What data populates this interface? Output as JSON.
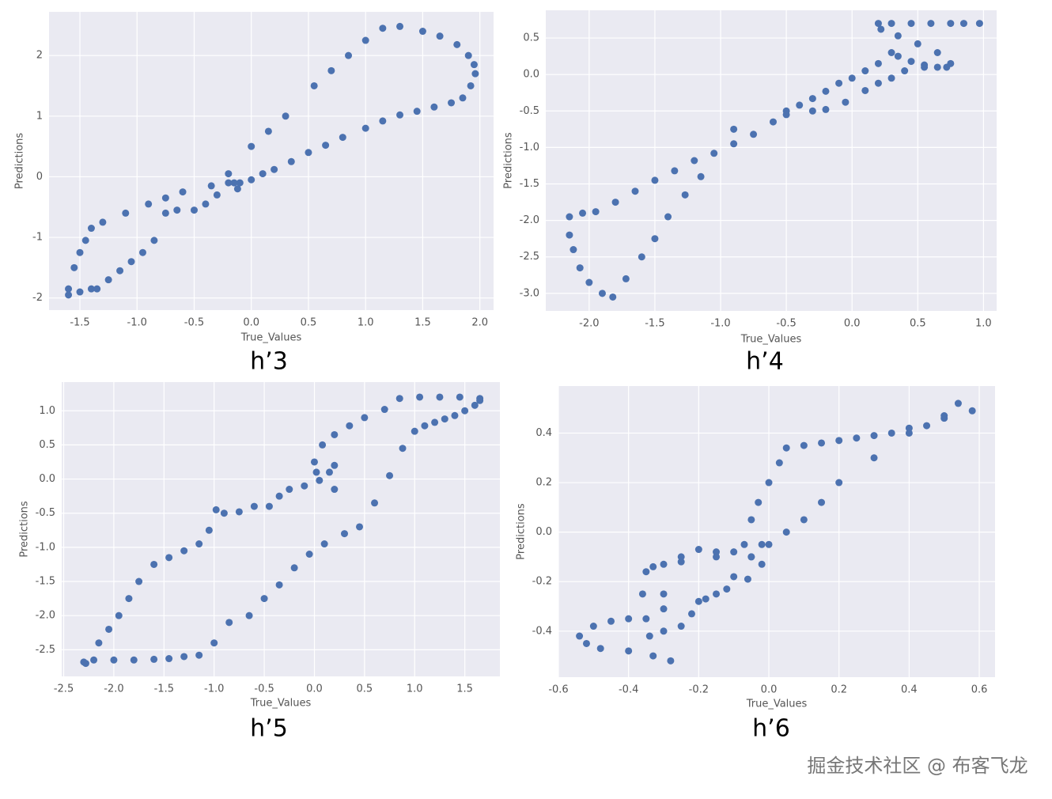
{
  "chart_data": [
    {
      "type": "scatter",
      "title": "h’3",
      "x_label": "True_Values",
      "y_label": "Predictions",
      "color": "#4c72b0",
      "grid": true,
      "xlim": [
        -1.77,
        2.12
      ],
      "ylim": [
        -2.2,
        2.72
      ],
      "xticks": [
        -1.5,
        {
          "value": -1.0,
          "label": "-1.0"
        },
        -0.5,
        {
          "value": 0,
          "label": "0.0"
        },
        0.5,
        {
          "value": 1.0,
          "label": "1.0"
        },
        1.5,
        {
          "value": 2.0,
          "label": "2.0"
        }
      ],
      "yticks": [
        -2,
        -1,
        0,
        1,
        2
      ],
      "x": [
        -1.6,
        -1.5,
        -1.4,
        -1.35,
        -1.25,
        -1.15,
        -1.05,
        -0.95,
        -0.85,
        -0.75,
        -0.65,
        -0.5,
        -0.4,
        -0.3,
        -0.2,
        -0.15,
        -0.12,
        -0.1,
        0.0,
        0.1,
        0.2,
        0.35,
        0.5,
        0.65,
        0.8,
        1.0,
        1.15,
        1.3,
        1.45,
        1.6,
        1.75,
        1.85,
        1.92,
        1.96,
        1.95,
        1.9,
        1.8,
        1.65,
        1.5,
        1.3,
        1.15,
        1.0,
        0.85,
        0.7,
        0.55,
        0.3,
        0.15,
        0.0,
        -0.2,
        -0.35,
        -0.6,
        -0.75,
        -0.9,
        -1.1,
        -1.3,
        -1.4,
        -1.45,
        -1.5,
        -1.55,
        -1.6
      ],
      "values": [
        -1.95,
        -1.9,
        -1.85,
        -1.85,
        -1.7,
        -1.55,
        -1.4,
        -1.25,
        -1.05,
        -0.6,
        -0.55,
        -0.55,
        -0.45,
        -0.3,
        -0.1,
        -0.1,
        -0.2,
        -0.1,
        -0.05,
        0.05,
        0.12,
        0.25,
        0.4,
        0.52,
        0.65,
        0.8,
        0.92,
        1.02,
        1.08,
        1.15,
        1.22,
        1.3,
        1.5,
        1.7,
        1.85,
        2.0,
        2.18,
        2.32,
        2.4,
        2.48,
        2.45,
        2.25,
        2.0,
        1.75,
        1.5,
        1.0,
        0.75,
        0.5,
        0.05,
        -0.15,
        -0.25,
        -0.35,
        -0.45,
        -0.6,
        -0.75,
        -0.85,
        -1.05,
        -1.25,
        -1.5,
        -1.85
      ]
    },
    {
      "type": "scatter",
      "title": "h’4",
      "x_label": "True_Values",
      "y_label": "Predictions",
      "color": "#4c72b0",
      "grid": true,
      "xlim": [
        -2.33,
        1.1
      ],
      "ylim": [
        -3.24,
        0.88
      ],
      "xticks": [
        {
          "value": -2.0,
          "label": "-2.0"
        },
        -1.5,
        {
          "value": -1.0,
          "label": "-1.0"
        },
        -0.5,
        {
          "value": 0,
          "label": "0.0"
        },
        0.5,
        {
          "value": 1.0,
          "label": "1.0"
        }
      ],
      "yticks": [
        {
          "value": -3.0,
          "label": "-3.0"
        },
        -2.5,
        {
          "value": -2.0,
          "label": "-2.0"
        },
        -1.5,
        {
          "value": -1.0,
          "label": "-1.0"
        },
        -0.5,
        {
          "value": 0,
          "label": "0.0"
        },
        0.5
      ],
      "x": [
        -2.15,
        -2.05,
        -1.95,
        -1.8,
        -1.65,
        -1.5,
        -1.35,
        -1.2,
        -1.05,
        -0.9,
        -0.75,
        -0.6,
        -0.5,
        -0.4,
        -0.3,
        -0.2,
        -0.1,
        0.0,
        0.1,
        0.2,
        0.3,
        0.35,
        0.45,
        0.55,
        0.65,
        0.72,
        0.75,
        0.65,
        0.5,
        0.35,
        0.22,
        0.2,
        0.3,
        0.45,
        0.6,
        0.75,
        0.85,
        0.97,
        0.55,
        0.4,
        0.3,
        0.2,
        0.1,
        -0.05,
        -0.2,
        -0.3,
        -0.5,
        -0.9,
        -1.15,
        -1.27,
        -1.4,
        -1.5,
        -1.6,
        -1.72,
        -1.82,
        -1.9,
        -2.0,
        -2.07,
        -2.12,
        -2.15
      ],
      "values": [
        -1.95,
        -1.9,
        -1.88,
        -1.75,
        -1.6,
        -1.45,
        -1.32,
        -1.18,
        -1.08,
        -0.95,
        -0.82,
        -0.65,
        -0.5,
        -0.42,
        -0.33,
        -0.23,
        -0.12,
        -0.05,
        0.05,
        0.15,
        0.3,
        0.25,
        0.18,
        0.13,
        0.1,
        0.1,
        0.15,
        0.3,
        0.42,
        0.53,
        0.62,
        0.7,
        0.7,
        0.7,
        0.7,
        0.7,
        0.7,
        0.7,
        0.1,
        0.05,
        -0.05,
        -0.12,
        -0.22,
        -0.38,
        -0.48,
        -0.5,
        -0.55,
        -0.75,
        -1.4,
        -1.65,
        -1.95,
        -2.25,
        -2.5,
        -2.8,
        -3.05,
        -3.0,
        -2.85,
        -2.65,
        -2.4,
        -2.2
      ]
    },
    {
      "type": "scatter",
      "title": "h’5",
      "x_label": "True_Values",
      "y_label": "Predictions",
      "color": "#4c72b0",
      "grid": true,
      "xlim": [
        -2.52,
        1.85
      ],
      "ylim": [
        -2.89,
        1.42
      ],
      "xticks": [
        -2.5,
        {
          "value": -2.0,
          "label": "-2.0"
        },
        -1.5,
        {
          "value": -1.0,
          "label": "-1.0"
        },
        -0.5,
        {
          "value": 0,
          "label": "0.0"
        },
        0.5,
        {
          "value": 1.0,
          "label": "1.0"
        },
        1.5
      ],
      "yticks": [
        -2.5,
        {
          "value": -2.0,
          "label": "-2.0"
        },
        -1.5,
        {
          "value": -1.0,
          "label": "-1.0"
        },
        -0.5,
        {
          "value": 0,
          "label": "0.0"
        },
        0.5,
        {
          "value": 1.0,
          "label": "1.0"
        }
      ],
      "x": [
        -2.3,
        -2.2,
        -2.0,
        -1.8,
        -1.6,
        -1.45,
        -1.3,
        -1.15,
        -1.0,
        -0.85,
        -0.65,
        -0.5,
        -0.35,
        -0.2,
        -0.05,
        0.1,
        0.3,
        0.45,
        0.6,
        0.75,
        0.88,
        1.0,
        1.1,
        1.2,
        1.3,
        1.4,
        1.5,
        1.6,
        1.65,
        -2.28,
        -2.15,
        -2.05,
        -1.95,
        -1.85,
        -1.75,
        -1.6,
        -1.45,
        -1.3,
        -1.15,
        -1.05,
        -0.98,
        -0.9,
        -0.75,
        -0.6,
        -0.45,
        -0.35,
        -0.25,
        -0.1,
        0.05,
        0.15,
        0.2,
        0.2,
        0.02,
        0.0,
        0.08,
        0.2,
        0.35,
        0.5,
        0.7,
        0.85,
        1.05,
        1.25,
        1.45,
        1.65
      ],
      "values": [
        -2.68,
        -2.65,
        -2.65,
        -2.65,
        -2.64,
        -2.63,
        -2.6,
        -2.58,
        -2.4,
        -2.1,
        -2.0,
        -1.75,
        -1.55,
        -1.3,
        -1.1,
        -0.95,
        -0.8,
        -0.7,
        -0.35,
        0.05,
        0.45,
        0.7,
        0.78,
        0.83,
        0.88,
        0.93,
        1.0,
        1.08,
        1.15,
        -2.7,
        -2.4,
        -2.2,
        -2.0,
        -1.75,
        -1.5,
        -1.25,
        -1.15,
        -1.05,
        -0.95,
        -0.75,
        -0.45,
        -0.5,
        -0.48,
        -0.4,
        -0.4,
        -0.25,
        -0.15,
        -0.1,
        -0.02,
        0.1,
        0.2,
        -0.15,
        0.1,
        0.25,
        0.5,
        0.65,
        0.78,
        0.9,
        1.02,
        1.18,
        1.2,
        1.2,
        1.2,
        1.18
      ]
    },
    {
      "type": "scatter",
      "title": "h’6",
      "x_label": "True_Values",
      "y_label": "Predictions",
      "color": "#4c72b0",
      "grid": true,
      "xlim": [
        -0.6,
        0.645
      ],
      "ylim": [
        -0.586,
        0.59
      ],
      "xticks": [
        -0.6,
        -0.4,
        -0.2,
        {
          "value": 0,
          "label": "0.0"
        },
        0.2,
        0.4,
        0.6
      ],
      "yticks": [
        -0.4,
        -0.2,
        {
          "value": 0,
          "label": "0.0"
        },
        0.2,
        0.4
      ],
      "x": [
        0.05,
        0.1,
        0.15,
        0.2,
        0.25,
        0.3,
        0.35,
        0.45,
        0.03,
        0.0,
        -0.03,
        -0.05,
        -0.07,
        -0.1,
        -0.15,
        -0.2,
        -0.25,
        -0.3,
        -0.35,
        -0.36,
        -0.35,
        -0.34,
        -0.3,
        -0.25,
        -0.22,
        -0.18,
        -0.12,
        -0.06,
        -0.02,
        -0.54,
        -0.5,
        -0.45,
        -0.4,
        -0.3,
        -0.2,
        -0.15,
        -0.1,
        -0.05,
        0.0,
        0.05,
        0.1,
        0.15,
        0.2,
        0.3,
        0.4,
        0.5,
        0.54,
        0.58,
        0.5,
        0.4,
        -0.52,
        -0.48,
        -0.4,
        -0.33,
        -0.28,
        -0.3,
        -0.33,
        -0.25,
        -0.15,
        -0.05,
        -0.02
      ],
      "values": [
        0.34,
        0.35,
        0.36,
        0.37,
        0.38,
        0.39,
        0.4,
        0.43,
        0.28,
        0.2,
        0.12,
        0.05,
        -0.05,
        -0.08,
        -0.08,
        -0.07,
        -0.1,
        -0.13,
        -0.16,
        -0.25,
        -0.35,
        -0.42,
        -0.4,
        -0.38,
        -0.33,
        -0.27,
        -0.23,
        -0.19,
        -0.13,
        -0.42,
        -0.38,
        -0.36,
        -0.35,
        -0.31,
        -0.28,
        -0.25,
        -0.18,
        -0.1,
        -0.05,
        0.0,
        0.05,
        0.12,
        0.2,
        0.3,
        0.4,
        0.47,
        0.52,
        0.49,
        0.46,
        0.42,
        -0.45,
        -0.47,
        -0.48,
        -0.5,
        -0.52,
        -0.25,
        -0.14,
        -0.12,
        -0.1,
        -0.1,
        -0.05
      ]
    }
  ],
  "watermark": "掘金技术社区 @ 布客飞龙"
}
